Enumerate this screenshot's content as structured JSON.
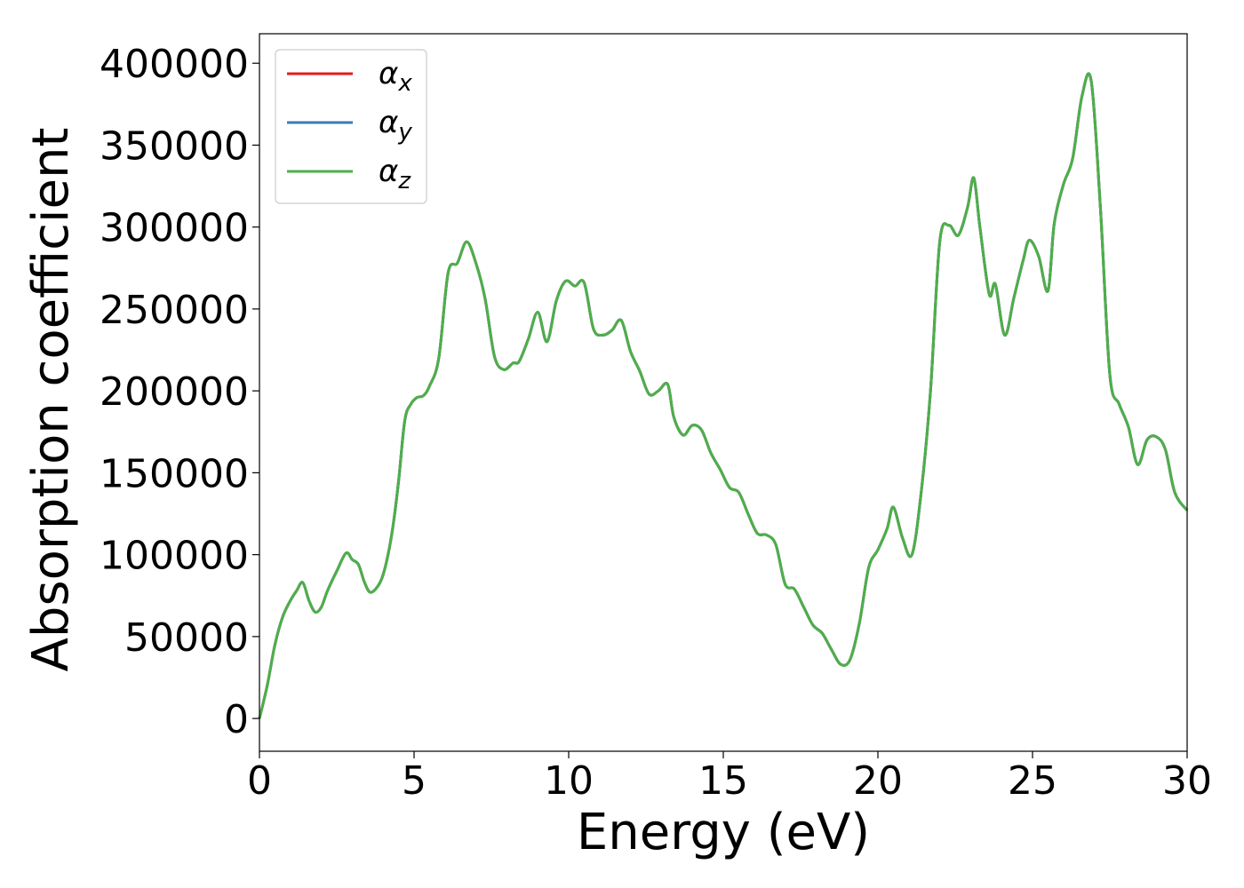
{
  "chart_data": {
    "type": "line",
    "title": "",
    "xlabel": "Energy (eV)",
    "ylabel": "Absorption coefficient",
    "xlim": [
      0,
      30
    ],
    "ylim": [
      -20000,
      418000
    ],
    "xticks": [
      0,
      5,
      10,
      15,
      20,
      25,
      30
    ],
    "yticks": [
      0,
      50000,
      100000,
      150000,
      200000,
      250000,
      300000,
      350000,
      400000
    ],
    "grid": false,
    "legend_position": "top-left",
    "series": [
      {
        "name": "α",
        "subscript": "x",
        "color": "#e41a1c"
      },
      {
        "name": "α",
        "subscript": "y",
        "color": "#377eb8"
      },
      {
        "name": "α",
        "subscript": "z",
        "color": "#4daf4a"
      }
    ],
    "x": [
      0,
      0.25,
      0.5,
      0.75,
      1.0,
      1.2,
      1.4,
      1.6,
      1.8,
      2.0,
      2.2,
      2.5,
      2.8,
      3.0,
      3.2,
      3.4,
      3.6,
      3.9,
      4.1,
      4.3,
      4.5,
      4.7,
      4.9,
      5.1,
      5.3,
      5.5,
      5.8,
      6.1,
      6.4,
      6.7,
      7.0,
      7.3,
      7.6,
      7.9,
      8.2,
      8.4,
      8.7,
      9.0,
      9.3,
      9.6,
      9.9,
      10.2,
      10.5,
      10.8,
      11.1,
      11.4,
      11.7,
      12.0,
      12.3,
      12.6,
      12.9,
      13.2,
      13.4,
      13.7,
      14.0,
      14.3,
      14.6,
      14.9,
      15.2,
      15.5,
      15.8,
      16.1,
      16.4,
      16.7,
      17.0,
      17.3,
      17.6,
      17.9,
      18.2,
      18.5,
      18.8,
      19.1,
      19.4,
      19.7,
      20.0,
      20.3,
      20.5,
      20.8,
      21.1,
      21.4,
      21.7,
      22.0,
      22.3,
      22.6,
      22.9,
      23.1,
      23.3,
      23.6,
      23.8,
      24.1,
      24.4,
      24.7,
      24.9,
      25.2,
      25.5,
      25.7,
      26.0,
      26.3,
      26.6,
      26.9,
      27.2,
      27.5,
      27.8,
      28.1,
      28.4,
      28.7,
      29.0,
      29.3,
      29.6,
      30.0
    ],
    "values": [
      0,
      20000,
      45000,
      62000,
      72000,
      78000,
      83000,
      72000,
      65000,
      68000,
      78000,
      90000,
      101000,
      97000,
      94000,
      83000,
      77000,
      83000,
      95000,
      115000,
      145000,
      182000,
      192000,
      196000,
      197000,
      203000,
      220000,
      272000,
      278000,
      291000,
      278000,
      256000,
      221000,
      213000,
      217000,
      218000,
      232000,
      248000,
      230000,
      255000,
      267000,
      264000,
      266000,
      238000,
      234000,
      237000,
      243000,
      224000,
      212000,
      198000,
      200000,
      204000,
      184000,
      173000,
      179000,
      176000,
      162000,
      152000,
      141000,
      138000,
      125000,
      113000,
      112000,
      106000,
      82000,
      79000,
      68000,
      57000,
      52000,
      42000,
      33000,
      36000,
      58000,
      92000,
      103000,
      116000,
      129000,
      110000,
      100000,
      138000,
      200000,
      291000,
      301000,
      295000,
      312000,
      330000,
      300000,
      259000,
      265000,
      234000,
      257000,
      280000,
      292000,
      282000,
      261000,
      302000,
      326000,
      342000,
      380000,
      389000,
      310000,
      210000,
      192000,
      178000,
      155000,
      170000,
      172000,
      164000,
      138000,
      127000
    ]
  }
}
